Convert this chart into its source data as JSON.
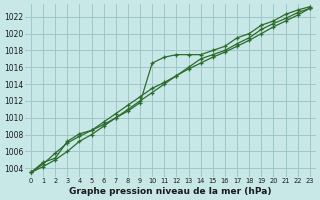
{
  "title": "Graphe pression niveau de la mer (hPa)",
  "background_color": "#c8e8e8",
  "grid_color": "#a0c8c8",
  "line_color": "#2d6b2d",
  "x_labels": [
    "0",
    "1",
    "2",
    "3",
    "4",
    "5",
    "6",
    "7",
    "8",
    "9",
    "10",
    "11",
    "12",
    "13",
    "14",
    "15",
    "16",
    "17",
    "18",
    "19",
    "20",
    "21",
    "22",
    "23"
  ],
  "ylim": [
    1003,
    1023.5
  ],
  "xlim": [
    -0.5,
    23.5
  ],
  "yticks": [
    1004,
    1006,
    1008,
    1010,
    1012,
    1014,
    1016,
    1018,
    1020,
    1022
  ],
  "series": [
    [
      1003.5,
      1004.7,
      1005.2,
      1007.2,
      1008.1,
      1008.5,
      1009.2,
      1010.0,
      1010.8,
      1011.8,
      1016.5,
      1017.2,
      1017.5,
      1017.5,
      1017.5,
      1018.0,
      1018.5,
      1019.5,
      1020.0,
      1021.0,
      1021.5,
      1022.3,
      1022.8,
      1023.2
    ],
    [
      1003.5,
      1004.5,
      1005.8,
      1007.0,
      1007.8,
      1008.5,
      1009.5,
      1010.5,
      1011.5,
      1012.5,
      1013.5,
      1014.2,
      1015.0,
      1015.8,
      1016.5,
      1017.2,
      1017.8,
      1018.5,
      1019.2,
      1020.0,
      1020.8,
      1021.5,
      1022.2,
      1023.0
    ],
    [
      1003.5,
      1004.2,
      1005.0,
      1006.0,
      1007.2,
      1008.0,
      1009.0,
      1010.0,
      1011.0,
      1012.0,
      1013.0,
      1014.0,
      1015.0,
      1016.0,
      1017.0,
      1017.5,
      1018.0,
      1018.8,
      1019.5,
      1020.5,
      1021.2,
      1021.8,
      1022.5,
      1023.0
    ]
  ],
  "marker": "+",
  "marker_series": [
    0
  ],
  "linewidth": 0.9,
  "markersize": 3.5,
  "markeredgewidth": 0.9,
  "fontsize_ytick": 5.5,
  "fontsize_xtick": 4.8,
  "fontsize_xlabel": 6.5
}
